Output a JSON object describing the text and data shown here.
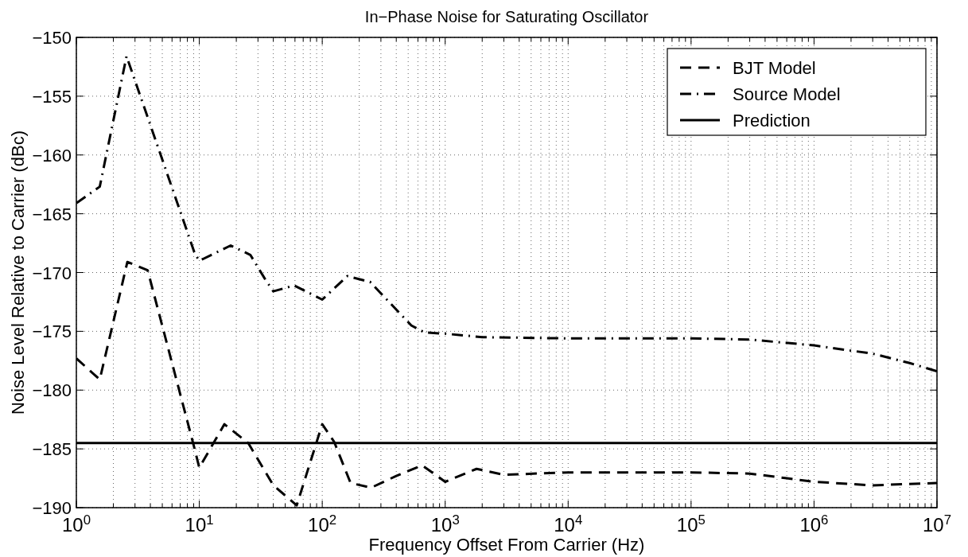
{
  "chart_data": {
    "type": "line",
    "title": "In−Phase Noise for Saturating Oscillator",
    "xlabel": "Frequency Offset From Carrier (Hz)",
    "ylabel": "Noise Level Relative to Carrier (dBc)",
    "log": "x",
    "grid": true,
    "legend": "top right",
    "marker": "none",
    "xlim": [
      1,
      10000000
    ],
    "ylim": [
      -190,
      -150
    ],
    "xticks": [
      {
        "value": 1,
        "label": "10$^{0}$"
      },
      {
        "value": 10,
        "label": "10$^{1}$"
      },
      {
        "value": 100,
        "label": "10$^{2}$"
      },
      {
        "value": 1000,
        "label": "10$^{3}$"
      },
      {
        "value": 10000,
        "label": "10$^{4}$"
      },
      {
        "value": 100000,
        "label": "10$^{5}$"
      },
      {
        "value": 1000000,
        "label": "10$^{6}$"
      },
      {
        "value": 10000000,
        "label": "10$^{7}$"
      }
    ],
    "yticks": [
      {
        "value": -190,
        "label": "−190"
      },
      {
        "value": -185,
        "label": "−185"
      },
      {
        "value": -180,
        "label": "−180"
      },
      {
        "value": -175,
        "label": "−175"
      },
      {
        "value": -170,
        "label": "−170"
      },
      {
        "value": -165,
        "label": "−165"
      },
      {
        "value": -160,
        "label": "−160"
      },
      {
        "value": -155,
        "label": "−155"
      },
      {
        "value": -150,
        "label": "−150"
      }
    ],
    "series": [
      {
        "name": "BJT Model",
        "color": "#000000",
        "line_style": "dashed",
        "x": [
          1,
          1.55,
          2.6,
          3.8,
          9,
          10,
          16,
          25,
          40,
          62,
          100,
          125,
          170,
          250,
          400,
          650,
          1000,
          1800,
          3000,
          10000,
          100000,
          300000,
          600000,
          1000000,
          3000000,
          10000000
        ],
        "values": [
          -177.3,
          -179.1,
          -169.1,
          -169.8,
          -184.7,
          -186.6,
          -182.9,
          -184.5,
          -188.1,
          -189.8,
          -182.9,
          -184.4,
          -187.9,
          -188.3,
          -187.3,
          -186.4,
          -187.8,
          -186.7,
          -187.2,
          -187.0,
          -187.0,
          -187.1,
          -187.5,
          -187.8,
          -188.1,
          -187.9
        ]
      },
      {
        "name": "Source Model",
        "color": "#000000",
        "line_style": "dashdot",
        "x": [
          1,
          1.55,
          2.56,
          9.2,
          10,
          18,
          26,
          34,
          40,
          59,
          100,
          160,
          245,
          530,
          680,
          1000,
          2000,
          10000,
          100000,
          300000,
          1000000,
          3000000,
          6000000,
          10000000
        ],
        "values": [
          -164.1,
          -162.7,
          -151.6,
          -168.4,
          -169.0,
          -167.7,
          -168.5,
          -170.5,
          -171.6,
          -171.1,
          -172.3,
          -170.3,
          -170.8,
          -174.5,
          -175.1,
          -175.2,
          -175.5,
          -175.6,
          -175.6,
          -175.7,
          -176.2,
          -176.9,
          -177.7,
          -178.4
        ]
      },
      {
        "name": "Prediction",
        "color": "#000000",
        "line_style": "solid",
        "x": [
          1,
          10000000
        ],
        "values": [
          -184.5,
          -184.5
        ]
      }
    ]
  }
}
